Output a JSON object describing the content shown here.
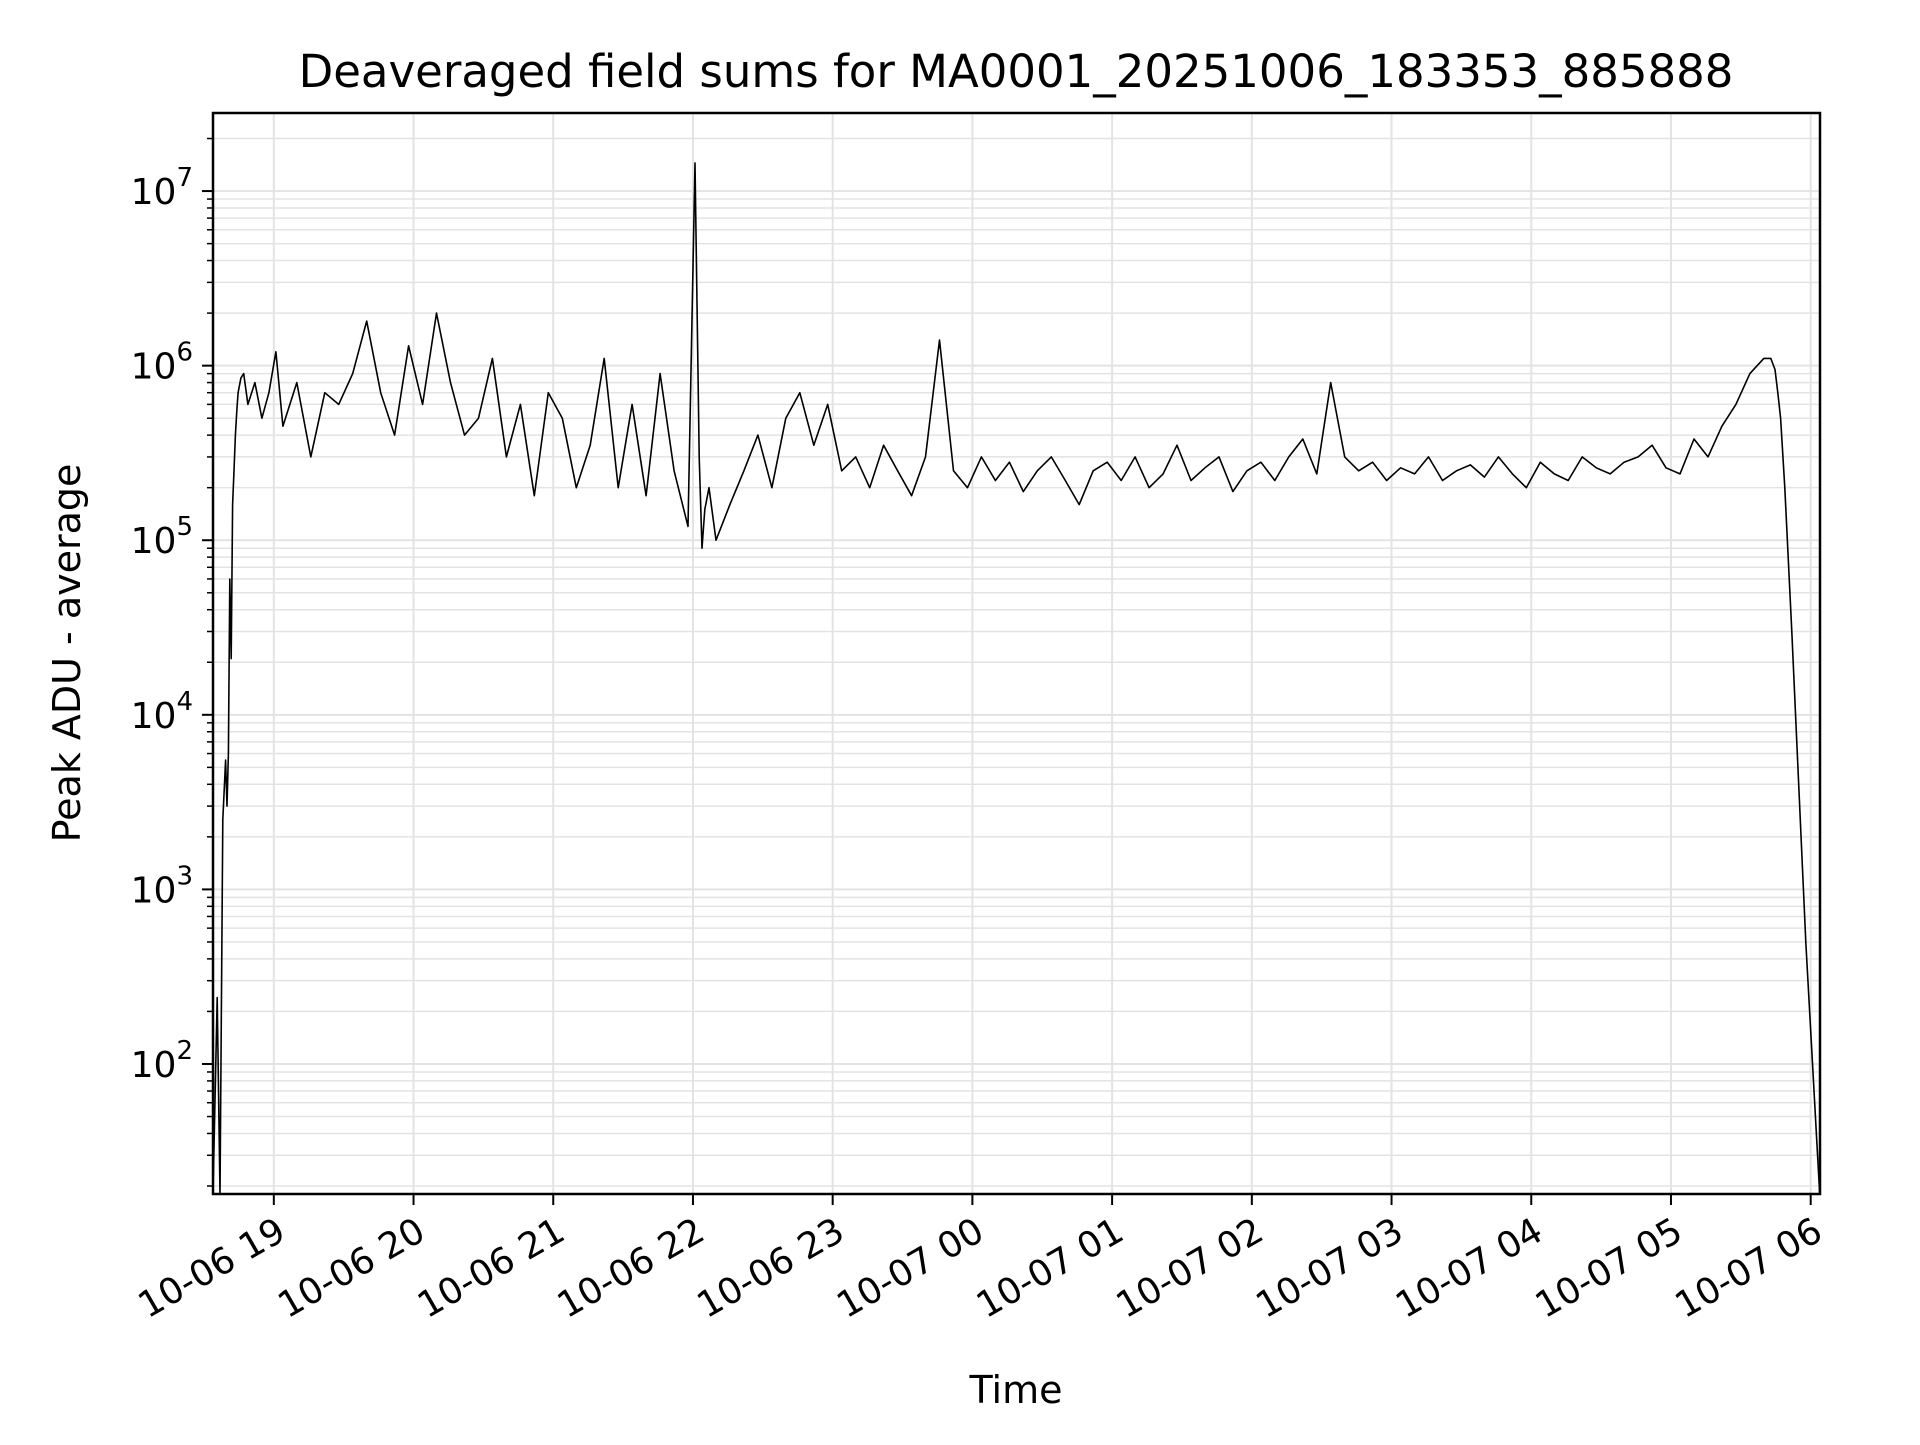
{
  "chart_data": {
    "type": "line",
    "title": "Deaveraged field sums for MA0001_20251006_183353_885888",
    "xlabel": "Time",
    "ylabel": "Peak ADU - average",
    "yscale": "log",
    "ylim": [
      18,
      28000000
    ],
    "xlim": [
      "2025-10-06 18:33:53",
      "2025-10-07 06:04:00"
    ],
    "grid": true,
    "line_color": "#000000",
    "grid_color": "#e3e3e3",
    "x_ticks": [
      {
        "time": "2025-10-06 19:00",
        "label": "10-06 19"
      },
      {
        "time": "2025-10-06 20:00",
        "label": "10-06 20"
      },
      {
        "time": "2025-10-06 21:00",
        "label": "10-06 21"
      },
      {
        "time": "2025-10-06 22:00",
        "label": "10-06 22"
      },
      {
        "time": "2025-10-06 23:00",
        "label": "10-06 23"
      },
      {
        "time": "2025-10-07 00:00",
        "label": "10-07 00"
      },
      {
        "time": "2025-10-07 01:00",
        "label": "10-07 01"
      },
      {
        "time": "2025-10-07 02:00",
        "label": "10-07 02"
      },
      {
        "time": "2025-10-07 03:00",
        "label": "10-07 03"
      },
      {
        "time": "2025-10-07 04:00",
        "label": "10-07 04"
      },
      {
        "time": "2025-10-07 05:00",
        "label": "10-07 05"
      },
      {
        "time": "2025-10-07 06:00",
        "label": "10-07 06"
      }
    ],
    "y_ticks": [
      {
        "value": 100,
        "base": "10",
        "exp": "2"
      },
      {
        "value": 1000,
        "base": "10",
        "exp": "3"
      },
      {
        "value": 10000,
        "base": "10",
        "exp": "4"
      },
      {
        "value": 100000,
        "base": "10",
        "exp": "5"
      },
      {
        "value": 1000000,
        "base": "10",
        "exp": "6"
      },
      {
        "value": 10000000,
        "base": "10",
        "exp": "7"
      }
    ],
    "series": [
      {
        "name": "Deaveraged field sum",
        "x_hours_since_start": [
          0.0,
          0.03,
          0.05,
          0.07,
          0.09,
          0.1,
          0.11,
          0.12,
          0.13,
          0.14,
          0.15,
          0.16,
          0.17,
          0.18,
          0.2,
          0.22,
          0.25,
          0.3,
          0.35,
          0.4,
          0.45,
          0.5,
          0.6,
          0.7,
          0.8,
          0.9,
          1.0,
          1.1,
          1.2,
          1.3,
          1.4,
          1.5,
          1.6,
          1.7,
          1.8,
          1.9,
          2.0,
          2.1,
          2.2,
          2.3,
          2.4,
          2.5,
          2.6,
          2.7,
          2.8,
          2.9,
          3.0,
          3.1,
          3.2,
          3.3,
          3.4,
          3.45,
          3.48,
          3.5,
          3.52,
          3.55,
          3.6,
          3.7,
          3.8,
          3.9,
          4.0,
          4.1,
          4.2,
          4.3,
          4.4,
          4.5,
          4.6,
          4.7,
          4.8,
          4.9,
          5.0,
          5.1,
          5.2,
          5.3,
          5.4,
          5.5,
          5.6,
          5.7,
          5.8,
          5.9,
          6.0,
          6.1,
          6.2,
          6.3,
          6.4,
          6.5,
          6.6,
          6.7,
          6.8,
          6.9,
          7.0,
          7.1,
          7.2,
          7.3,
          7.4,
          7.5,
          7.6,
          7.7,
          7.8,
          7.9,
          8.0,
          8.1,
          8.2,
          8.3,
          8.4,
          8.5,
          8.6,
          8.7,
          8.8,
          8.9,
          9.0,
          9.1,
          9.2,
          9.3,
          9.4,
          9.5,
          9.6,
          9.7,
          9.8,
          9.9,
          10.0,
          10.1,
          10.2,
          10.3,
          10.4,
          10.5,
          10.6,
          10.7,
          10.8,
          10.9,
          11.0,
          11.1,
          11.15,
          11.18,
          11.2,
          11.22,
          11.25,
          11.3,
          11.4,
          11.5
        ],
        "values": [
          18,
          240,
          18,
          2500,
          5500,
          3000,
          6000,
          60000,
          21000,
          160000,
          250000,
          400000,
          550000,
          700000,
          850000,
          900000,
          600000,
          800000,
          500000,
          700000,
          1200000,
          450000,
          800000,
          300000,
          700000,
          600000,
          900000,
          1800000,
          700000,
          400000,
          1300000,
          600000,
          2000000,
          800000,
          400000,
          500000,
          1100000,
          300000,
          600000,
          180000,
          700000,
          500000,
          200000,
          350000,
          1100000,
          200000,
          600000,
          180000,
          900000,
          250000,
          120000,
          14500000,
          300000,
          90000,
          150000,
          200000,
          100000,
          160000,
          250000,
          400000,
          200000,
          500000,
          700000,
          350000,
          600000,
          250000,
          300000,
          200000,
          350000,
          250000,
          180000,
          300000,
          1400000,
          250000,
          200000,
          300000,
          220000,
          280000,
          190000,
          250000,
          300000,
          220000,
          160000,
          250000,
          280000,
          220000,
          300000,
          200000,
          240000,
          350000,
          220000,
          260000,
          300000,
          190000,
          250000,
          280000,
          220000,
          300000,
          380000,
          240000,
          800000,
          300000,
          250000,
          280000,
          220000,
          260000,
          240000,
          300000,
          220000,
          250000,
          270000,
          230000,
          300000,
          240000,
          200000,
          280000,
          240000,
          220000,
          300000,
          260000,
          240000,
          280000,
          300000,
          350000,
          260000,
          240000,
          380000,
          300000,
          450000,
          600000,
          900000,
          1100000,
          1100000,
          950000,
          700000,
          500000,
          200000,
          30000,
          500,
          18
        ]
      }
    ]
  }
}
